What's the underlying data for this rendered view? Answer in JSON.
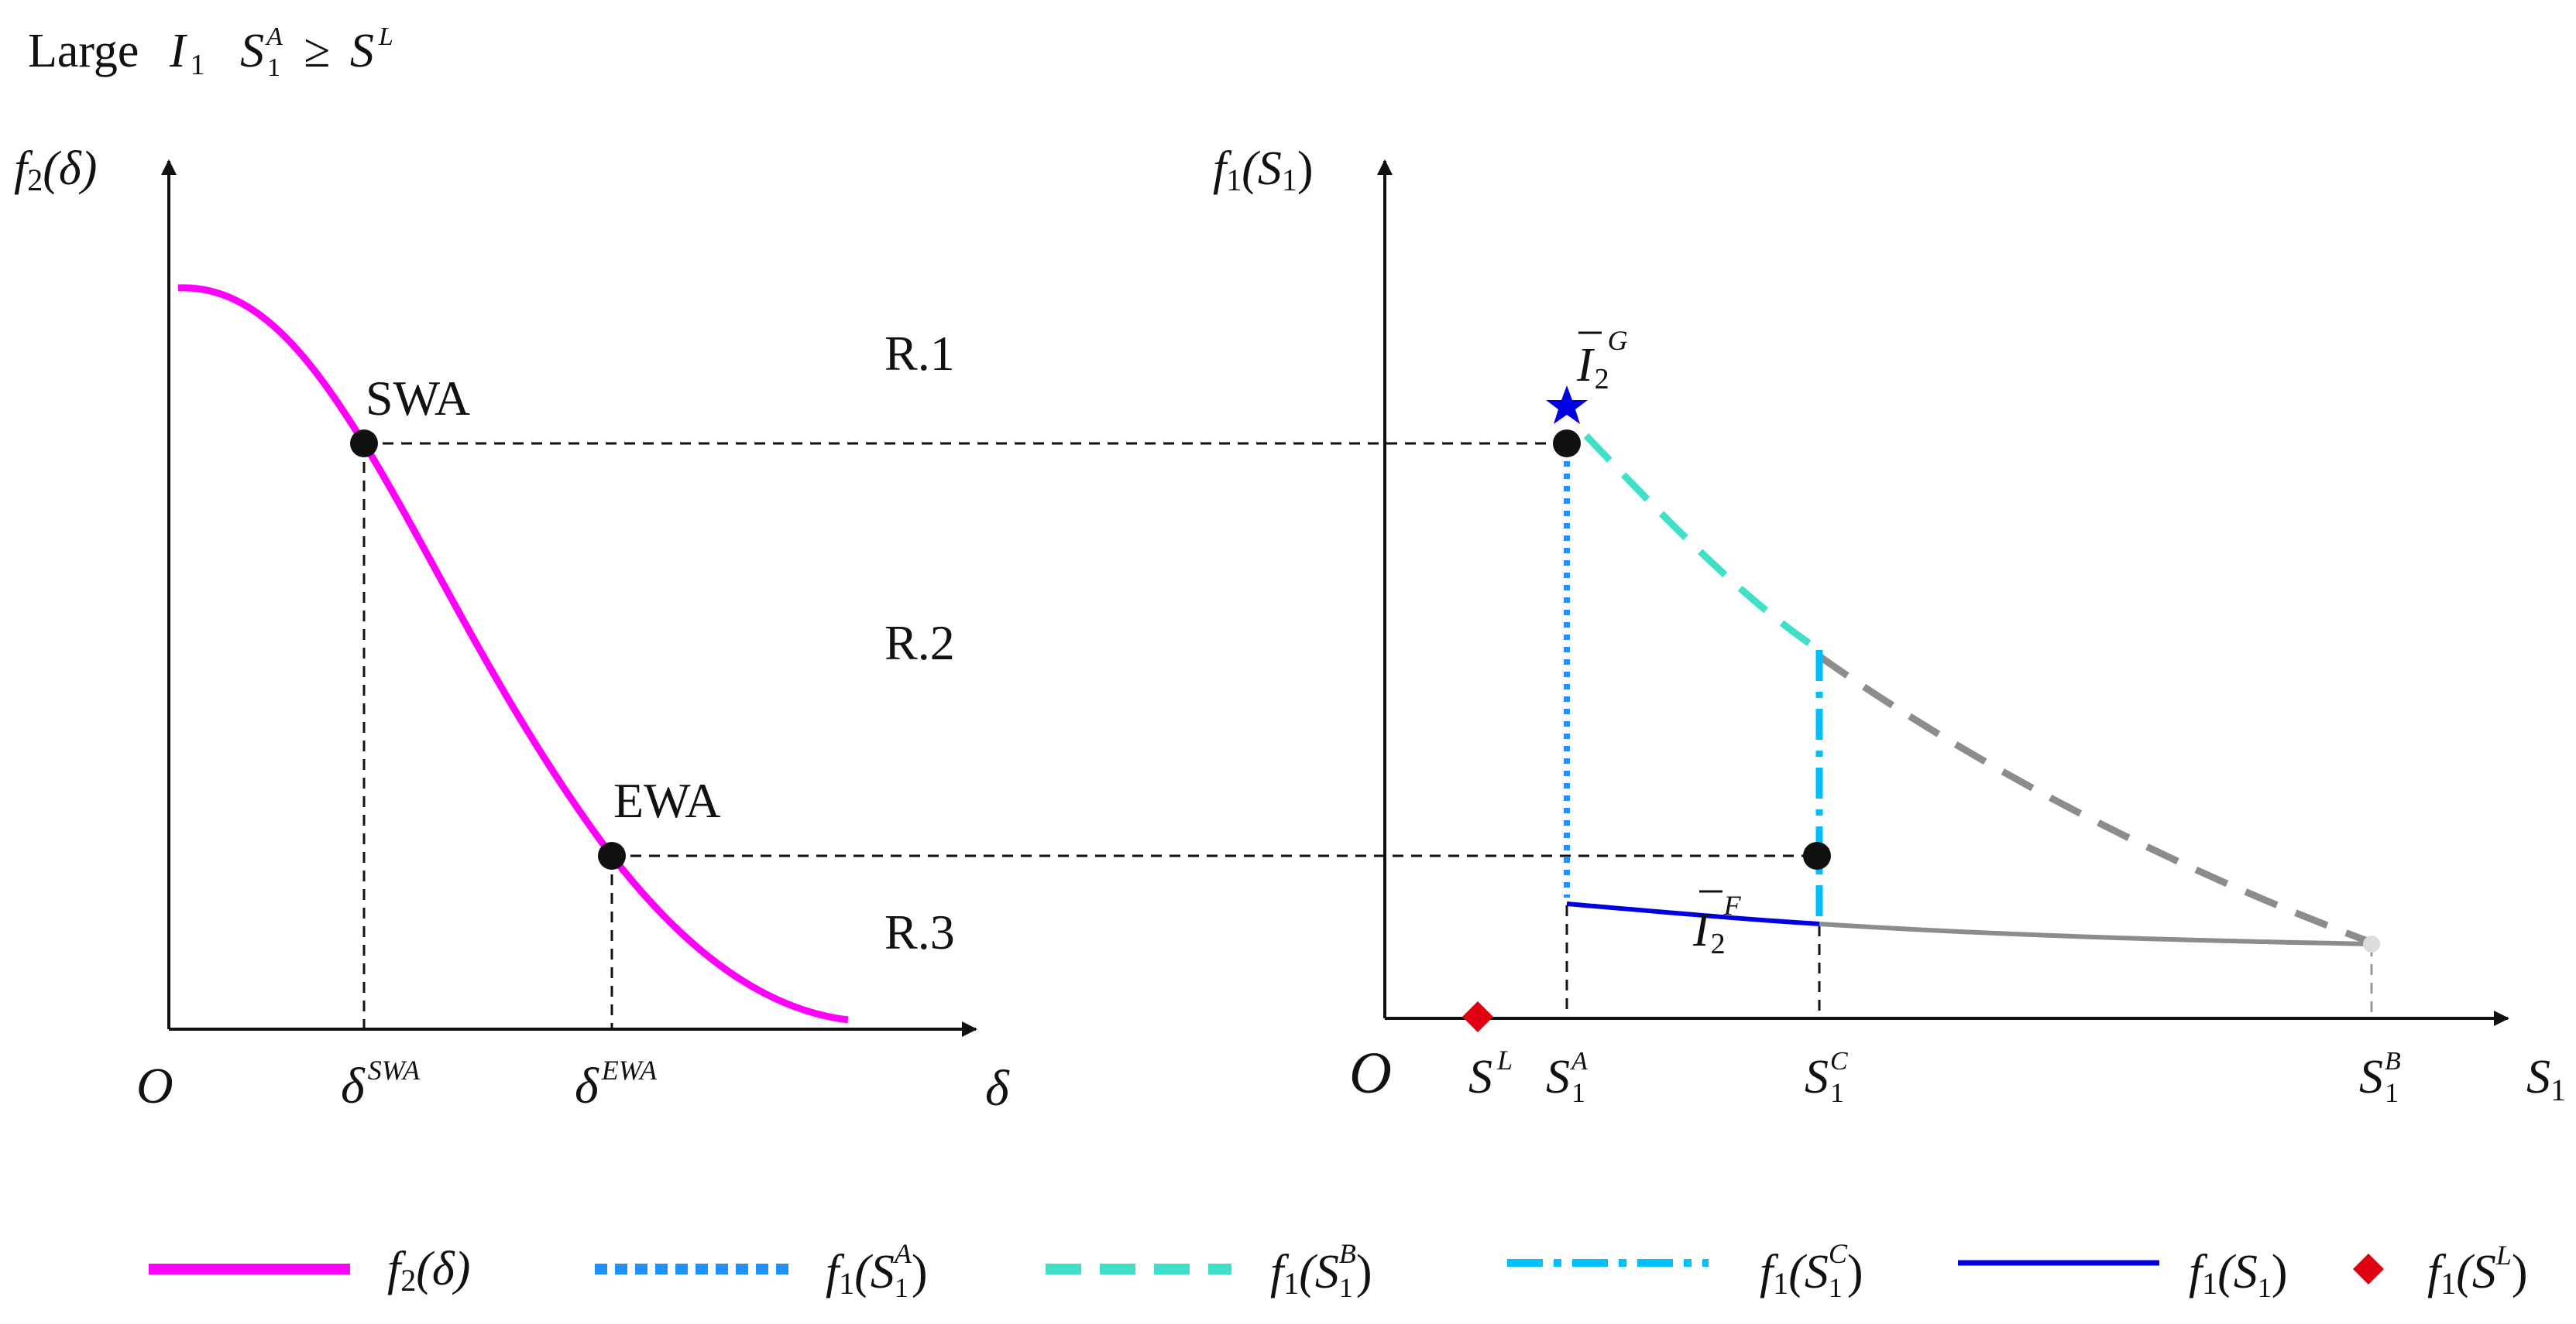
{
  "header": {
    "prefix": "Large",
    "I": "I",
    "I_sub": "1",
    "S": "S",
    "S_sub": "1",
    "S_sup": "A",
    "geq": "≥",
    "S2": "S",
    "S2_sup": "L"
  },
  "left_panel": {
    "y_axis_f": "f",
    "y_axis_sub": "2",
    "y_axis_arg": "(δ)",
    "x_axis_label": "δ",
    "origin": "O",
    "points": {
      "swa_label": "SWA",
      "ewa_label": "EWA"
    },
    "ticks": {
      "delta": "δ",
      "swa_sup": "SWA",
      "ewa_sup": "EWA"
    }
  },
  "regions": [
    "R.1",
    "R.2",
    "R.3"
  ],
  "right_panel": {
    "y_axis_f": "f",
    "y_axis_sub": "1",
    "y_axis_arg_open": "(S",
    "y_axis_arg_sub": "1",
    "y_axis_arg_close": ")",
    "x_axis_S": "S",
    "x_axis_sub": "1",
    "origin": "O",
    "ticks": {
      "SL_S": "S",
      "SL_sup": "L",
      "SA_S": "S",
      "SA_sub": "1",
      "SA_sup": "A",
      "SC_S": "S",
      "SC_sub": "1",
      "SC_sup": "C",
      "SB_S": "S",
      "SB_sub": "1",
      "SB_sup": "B"
    },
    "annotations": {
      "IG_I": "I",
      "IG_sub": "2",
      "IG_sup": "G",
      "IF_I": "I",
      "IF_sub": "2",
      "IF_sup": "F"
    }
  },
  "legend": [
    {
      "f": "f",
      "sub": "2",
      "arg": "(δ)",
      "color": "#ff00ff"
    },
    {
      "f": "f",
      "sub": "1",
      "arg_open": "(S",
      "arg_sub": "1",
      "arg_sup": "A",
      "arg_close": ")",
      "color": "#1e90ff"
    },
    {
      "f": "f",
      "sub": "1",
      "arg_open": "(S",
      "arg_sub": "1",
      "arg_sup": "B",
      "arg_close": ")",
      "color": "#40e0c8"
    },
    {
      "f": "f",
      "sub": "1",
      "arg_open": "(S",
      "arg_sub": "1",
      "arg_sup": "C",
      "arg_close": ")",
      "color": "#00bfff"
    },
    {
      "f": "f",
      "sub": "1",
      "arg_open": "(S",
      "arg_sub": "1",
      "arg_close": ")",
      "color": "#0000e0"
    },
    {
      "f": "f",
      "sub": "1",
      "arg_open": "(S",
      "arg_sup": "L",
      "arg_close": ")",
      "color": "#e00010"
    }
  ],
  "colors": {
    "f2_curve": "#ff00ff",
    "f1_SA": "#1e90ff",
    "f1_SB": "#40e0c8",
    "f1_SC": "#00bfff",
    "f1_S1": "#0000e0",
    "f1_SL": "#e00010",
    "gray": "#8c8c8c",
    "star": "#0000e0"
  }
}
